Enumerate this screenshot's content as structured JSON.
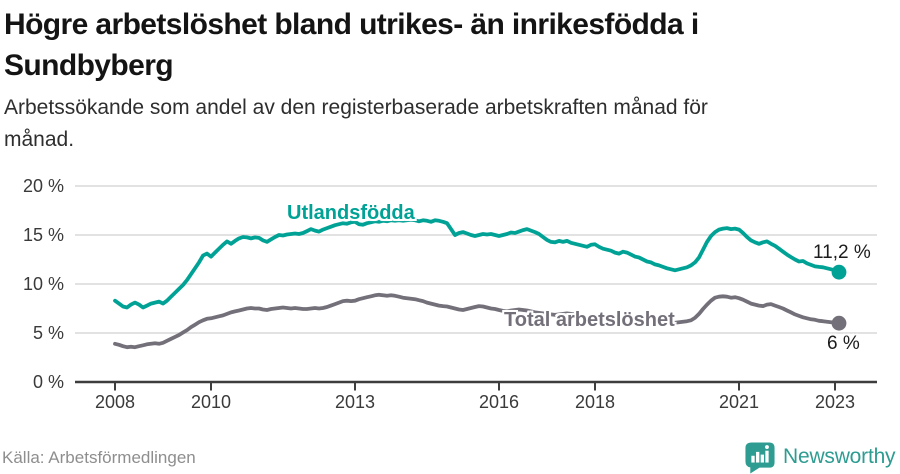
{
  "header": {
    "title": "Högre arbetslöshet bland utrikes- än inrikesfödda i\nSundbyberg",
    "subtitle": "Arbetssökande som andel av den registerbaserade arbetskraften månad för\nmånad."
  },
  "colors": {
    "teal": "#00a296",
    "gray": "#74707a",
    "grid": "#d9d9d9",
    "axis": "#3d3d3d",
    "value_label": "#1c1c1c",
    "muted": "#8e8e8e",
    "brand_teal": "#2e9c91"
  },
  "chart_data": {
    "type": "line",
    "x_unit": "month",
    "x_start": "2008-01",
    "x_end": "2023-02",
    "x_tick_years": [
      2008,
      2010,
      2013,
      2016,
      2018,
      2021,
      2023
    ],
    "x_tick_labels": [
      "2008",
      "2010",
      "2013",
      "2016",
      "2018",
      "2021",
      "2023"
    ],
    "y_tick_values": [
      20,
      15,
      10,
      5,
      0
    ],
    "y_tick_labels": [
      "20 %",
      "15 %",
      "10 %",
      "5 %",
      "0 %"
    ],
    "ylim": [
      0,
      20
    ],
    "grid": "horizontal",
    "series": [
      {
        "name": "Utlandsfödda",
        "color": "#00a296",
        "end_label": "11,2 %",
        "end_value": 11.2,
        "values": [
          8.3,
          8.0,
          7.7,
          7.6,
          7.9,
          8.1,
          7.9,
          7.6,
          7.8,
          8.0,
          8.1,
          8.2,
          8.0,
          8.3,
          8.7,
          9.1,
          9.5,
          9.9,
          10.4,
          11.0,
          11.6,
          12.2,
          12.9,
          13.1,
          12.8,
          13.2,
          13.6,
          14.0,
          14.35,
          14.1,
          14.4,
          14.65,
          14.8,
          14.75,
          14.65,
          14.75,
          14.7,
          14.45,
          14.3,
          14.55,
          14.8,
          15.0,
          14.95,
          15.05,
          15.1,
          15.15,
          15.1,
          15.2,
          15.4,
          15.6,
          15.45,
          15.35,
          15.55,
          15.7,
          15.85,
          16.0,
          16.1,
          16.2,
          16.15,
          16.3,
          16.35,
          16.1,
          16.05,
          16.2,
          16.3,
          16.4,
          16.35,
          16.45,
          16.4,
          16.5,
          16.45,
          16.5,
          16.45,
          16.5,
          16.55,
          16.5,
          16.4,
          16.5,
          16.45,
          16.35,
          16.5,
          16.45,
          16.35,
          16.2,
          15.6,
          15.0,
          15.2,
          15.3,
          15.15,
          15.0,
          14.9,
          15.0,
          15.1,
          15.05,
          15.1,
          15.0,
          14.9,
          15.0,
          15.1,
          15.25,
          15.2,
          15.35,
          15.5,
          15.6,
          15.45,
          15.3,
          15.1,
          14.8,
          14.5,
          14.3,
          14.25,
          14.4,
          14.3,
          14.4,
          14.2,
          14.1,
          14.0,
          13.9,
          13.8,
          14.0,
          14.05,
          13.8,
          13.6,
          13.5,
          13.4,
          13.2,
          13.1,
          13.3,
          13.2,
          13.0,
          12.8,
          12.7,
          12.5,
          12.3,
          12.2,
          12.0,
          11.9,
          11.75,
          11.6,
          11.5,
          11.4,
          11.5,
          11.6,
          11.7,
          11.9,
          12.2,
          12.7,
          13.5,
          14.3,
          14.9,
          15.3,
          15.55,
          15.65,
          15.7,
          15.6,
          15.65,
          15.55,
          15.2,
          14.8,
          14.45,
          14.25,
          14.1,
          14.25,
          14.35,
          14.1,
          13.9,
          13.6,
          13.3,
          13.0,
          12.75,
          12.5,
          12.3,
          12.35,
          12.1,
          11.95,
          11.8,
          11.75,
          11.7,
          11.6,
          11.5,
          11.4,
          11.2
        ]
      },
      {
        "name": "Total arbetslöshet",
        "color": "#74707a",
        "end_label": "6 %",
        "end_value": 6.0,
        "values": [
          3.9,
          3.8,
          3.65,
          3.55,
          3.6,
          3.55,
          3.65,
          3.75,
          3.85,
          3.9,
          3.95,
          3.9,
          4.0,
          4.2,
          4.4,
          4.6,
          4.8,
          5.05,
          5.3,
          5.6,
          5.85,
          6.1,
          6.3,
          6.45,
          6.5,
          6.6,
          6.7,
          6.8,
          6.95,
          7.1,
          7.2,
          7.3,
          7.4,
          7.5,
          7.55,
          7.5,
          7.5,
          7.4,
          7.35,
          7.45,
          7.5,
          7.55,
          7.6,
          7.55,
          7.5,
          7.55,
          7.5,
          7.45,
          7.45,
          7.5,
          7.55,
          7.5,
          7.55,
          7.65,
          7.8,
          7.95,
          8.1,
          8.25,
          8.3,
          8.25,
          8.3,
          8.45,
          8.55,
          8.65,
          8.75,
          8.85,
          8.9,
          8.85,
          8.8,
          8.85,
          8.8,
          8.7,
          8.6,
          8.55,
          8.5,
          8.45,
          8.35,
          8.25,
          8.1,
          8.0,
          7.9,
          7.8,
          7.75,
          7.7,
          7.6,
          7.5,
          7.4,
          7.35,
          7.45,
          7.55,
          7.65,
          7.75,
          7.7,
          7.6,
          7.5,
          7.45,
          7.35,
          7.25,
          7.2,
          7.3,
          7.35,
          7.4,
          7.35,
          7.3,
          7.2,
          7.1,
          7.05,
          7.0,
          6.95,
          6.9,
          6.85,
          6.9,
          6.95,
          7.0,
          6.95,
          6.9,
          6.8,
          6.75,
          6.7,
          6.65,
          6.6,
          6.5,
          6.45,
          6.4,
          6.35,
          6.3,
          6.25,
          6.3,
          6.25,
          6.2,
          6.15,
          6.1,
          6.1,
          6.05,
          6.0,
          6.0,
          5.95,
          6.0,
          6.05,
          6.0,
          6.05,
          6.1,
          6.15,
          6.2,
          6.3,
          6.55,
          6.95,
          7.45,
          7.9,
          8.3,
          8.6,
          8.7,
          8.75,
          8.7,
          8.6,
          8.65,
          8.55,
          8.4,
          8.2,
          8.0,
          7.9,
          7.8,
          7.75,
          7.9,
          7.95,
          7.8,
          7.65,
          7.5,
          7.3,
          7.1,
          6.9,
          6.75,
          6.6,
          6.5,
          6.4,
          6.35,
          6.25,
          6.2,
          6.15,
          6.1,
          6.05,
          6.0
        ]
      }
    ]
  },
  "footer": {
    "source": "Källa: Arbetsförmedlingen",
    "brand": "Newsworthy"
  }
}
